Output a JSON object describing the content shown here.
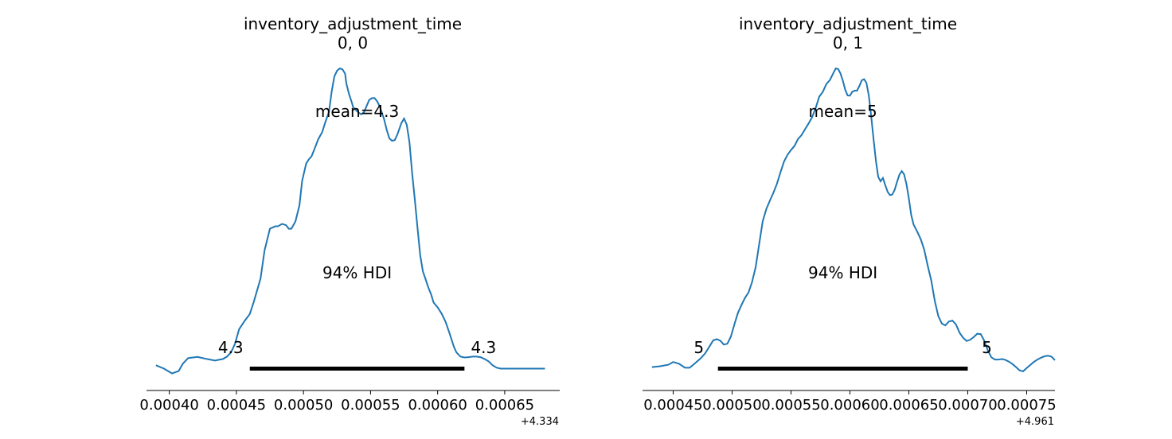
{
  "colors": {
    "line": "#1f77b4",
    "hdi": "#000000",
    "axis": "#000000"
  },
  "chart_data": [
    {
      "type": "line",
      "title": "inventory_adjustment_time",
      "subtitle": "0, 0",
      "mean_label": "mean=4.3",
      "hdi_label": "94% HDI",
      "hdi_low_label": "4.3",
      "hdi_high_label": "4.3",
      "hdi": [
        0.00046,
        0.00062
      ],
      "offset_label": "+4.334",
      "xlim": [
        0.000383,
        0.000691
      ],
      "ticks": [
        0.0004,
        0.00045,
        0.0005,
        0.00055,
        0.0006,
        0.00065
      ],
      "tick_labels": [
        "0.00040",
        "0.00045",
        "0.00050",
        "0.00055",
        "0.00060",
        "0.00065"
      ],
      "yunits": "relative density (peak = 1)",
      "density": {
        "x": [
          0.00039,
          0.000396,
          0.000402,
          0.000407,
          0.00041,
          0.000414,
          0.000421,
          0.000428,
          0.000434,
          0.00044,
          0.000443,
          0.000446,
          0.000449,
          0.000452,
          0.000456,
          0.00046,
          0.000463,
          0.000468,
          0.000471,
          0.000475,
          0.000479,
          0.000481,
          0.000484,
          0.000487,
          0.000489,
          0.000491,
          0.000494,
          0.000497,
          0.000499,
          0.000502,
          0.000504,
          0.000506,
          0.000508,
          0.000511,
          0.000514,
          0.000516,
          0.000519,
          0.000521,
          0.000523,
          0.000525,
          0.000527,
          0.000529,
          0.000531,
          0.000532,
          0.000534,
          0.000536,
          0.000537,
          0.000539,
          0.000541,
          0.000543,
          0.000545,
          0.000547,
          0.000549,
          0.000551,
          0.000553,
          0.000555,
          0.000557,
          0.00056,
          0.000562,
          0.000564,
          0.000566,
          0.000568,
          0.00057,
          0.000573,
          0.000575,
          0.000577,
          0.000579,
          0.000581,
          0.000583,
          0.000585,
          0.000587,
          0.000589,
          0.000591,
          0.000593,
          0.000595,
          0.000597,
          0.0006,
          0.000603,
          0.000606,
          0.000609,
          0.000612,
          0.000614,
          0.000617,
          0.00062,
          0.000623,
          0.000626,
          0.000629,
          0.000632,
          0.000635,
          0.000638,
          0.000641,
          0.000644,
          0.000647,
          0.000651,
          0.000655,
          0.00066,
          0.000665,
          0.00067,
          0.000675,
          0.00068
        ],
        "y": [
          0.011,
          0.0,
          -0.016,
          -0.008,
          0.016,
          0.035,
          0.039,
          0.032,
          0.027,
          0.032,
          0.04,
          0.054,
          0.083,
          0.131,
          0.158,
          0.182,
          0.223,
          0.3,
          0.394,
          0.466,
          0.474,
          0.474,
          0.482,
          0.478,
          0.466,
          0.466,
          0.49,
          0.544,
          0.625,
          0.683,
          0.697,
          0.707,
          0.729,
          0.764,
          0.788,
          0.817,
          0.855,
          0.922,
          0.973,
          0.992,
          1.0,
          0.997,
          0.983,
          0.949,
          0.914,
          0.887,
          0.871,
          0.861,
          0.853,
          0.847,
          0.853,
          0.874,
          0.895,
          0.901,
          0.901,
          0.89,
          0.871,
          0.832,
          0.796,
          0.767,
          0.759,
          0.761,
          0.78,
          0.818,
          0.833,
          0.812,
          0.754,
          0.651,
          0.563,
          0.469,
          0.378,
          0.324,
          0.298,
          0.271,
          0.249,
          0.22,
          0.204,
          0.183,
          0.155,
          0.116,
          0.074,
          0.054,
          0.04,
          0.037,
          0.038,
          0.04,
          0.04,
          0.038,
          0.032,
          0.024,
          0.011,
          0.003,
          0.0,
          0.0,
          0.0,
          0.0,
          0.0,
          0.0,
          0.0,
          0.0
        ]
      }
    },
    {
      "type": "line",
      "title": "inventory_adjustment_time",
      "subtitle": "0, 1",
      "mean_label": "mean=5",
      "hdi_label": "94% HDI",
      "hdi_low_label": "5",
      "hdi_high_label": "5",
      "hdi": [
        0.000488,
        0.0007
      ],
      "offset_label": "+4.961",
      "xlim": [
        0.000424,
        0.000774
      ],
      "ticks": [
        0.00045,
        0.0005,
        0.00055,
        0.0006,
        0.00065,
        0.0007,
        0.00075
      ],
      "tick_labels": [
        "0.00045",
        "0.00050",
        "0.00055",
        "0.00060",
        "0.00065",
        "0.00070",
        "0.00075"
      ],
      "yunits": "relative density (peak = 1)",
      "density": {
        "x": [
          0.000432,
          0.000439,
          0.000446,
          0.00045,
          0.000455,
          0.00046,
          0.000464,
          0.000468,
          0.000473,
          0.000477,
          0.000481,
          0.000484,
          0.000487,
          0.00049,
          0.000493,
          0.000496,
          0.000499,
          0.000502,
          0.000505,
          0.000508,
          0.000511,
          0.000514,
          0.000517,
          0.00052,
          0.000523,
          0.000526,
          0.000529,
          0.000532,
          0.000535,
          0.000538,
          0.000541,
          0.000544,
          0.000547,
          0.00055,
          0.000553,
          0.000556,
          0.000559,
          0.000562,
          0.000565,
          0.000568,
          0.000571,
          0.000574,
          0.000577,
          0.00058,
          0.000583,
          0.000586,
          0.000588,
          0.00059,
          0.000592,
          0.000594,
          0.000596,
          0.000598,
          0.0006,
          0.000602,
          0.000604,
          0.000606,
          0.000608,
          0.00061,
          0.000612,
          0.000614,
          0.000616,
          0.000618,
          0.00062,
          0.000622,
          0.000624,
          0.000626,
          0.000628,
          0.00063,
          0.000632,
          0.000634,
          0.000636,
          0.000638,
          0.00064,
          0.000642,
          0.000644,
          0.000646,
          0.000648,
          0.00065,
          0.000652,
          0.000654,
          0.000657,
          0.00066,
          0.000663,
          0.000666,
          0.000669,
          0.000672,
          0.000675,
          0.000678,
          0.000681,
          0.000684,
          0.000687,
          0.00069,
          0.000693,
          0.000696,
          0.000699,
          0.000702,
          0.000705,
          0.000708,
          0.000711,
          0.000714,
          0.000717,
          0.00072,
          0.000723,
          0.000726,
          0.000729,
          0.000732,
          0.000735,
          0.000738,
          0.000741,
          0.000744,
          0.000747,
          0.00075,
          0.000753,
          0.000756,
          0.000759,
          0.000762,
          0.000765,
          0.000768,
          0.000771,
          0.000774
        ],
        "y": [
          0.005,
          0.008,
          0.013,
          0.022,
          0.016,
          0.003,
          0.003,
          0.016,
          0.033,
          0.05,
          0.075,
          0.094,
          0.098,
          0.093,
          0.08,
          0.083,
          0.107,
          0.148,
          0.186,
          0.212,
          0.236,
          0.254,
          0.289,
          0.338,
          0.415,
          0.491,
          0.531,
          0.559,
          0.585,
          0.615,
          0.653,
          0.689,
          0.712,
          0.728,
          0.742,
          0.765,
          0.778,
          0.798,
          0.817,
          0.838,
          0.869,
          0.906,
          0.922,
          0.948,
          0.961,
          0.985,
          1.0,
          0.998,
          0.983,
          0.959,
          0.929,
          0.91,
          0.909,
          0.922,
          0.926,
          0.926,
          0.941,
          0.96,
          0.964,
          0.952,
          0.91,
          0.843,
          0.766,
          0.694,
          0.639,
          0.624,
          0.635,
          0.611,
          0.589,
          0.578,
          0.58,
          0.596,
          0.622,
          0.646,
          0.658,
          0.647,
          0.614,
          0.567,
          0.512,
          0.48,
          0.457,
          0.432,
          0.397,
          0.343,
          0.294,
          0.226,
          0.175,
          0.15,
          0.144,
          0.157,
          0.16,
          0.147,
          0.12,
          0.103,
          0.092,
          0.096,
          0.105,
          0.116,
          0.115,
          0.093,
          0.061,
          0.038,
          0.03,
          0.03,
          0.032,
          0.029,
          0.023,
          0.015,
          0.005,
          -0.006,
          -0.009,
          0.002,
          0.012,
          0.022,
          0.03,
          0.036,
          0.041,
          0.043,
          0.04,
          0.028
        ]
      }
    }
  ]
}
